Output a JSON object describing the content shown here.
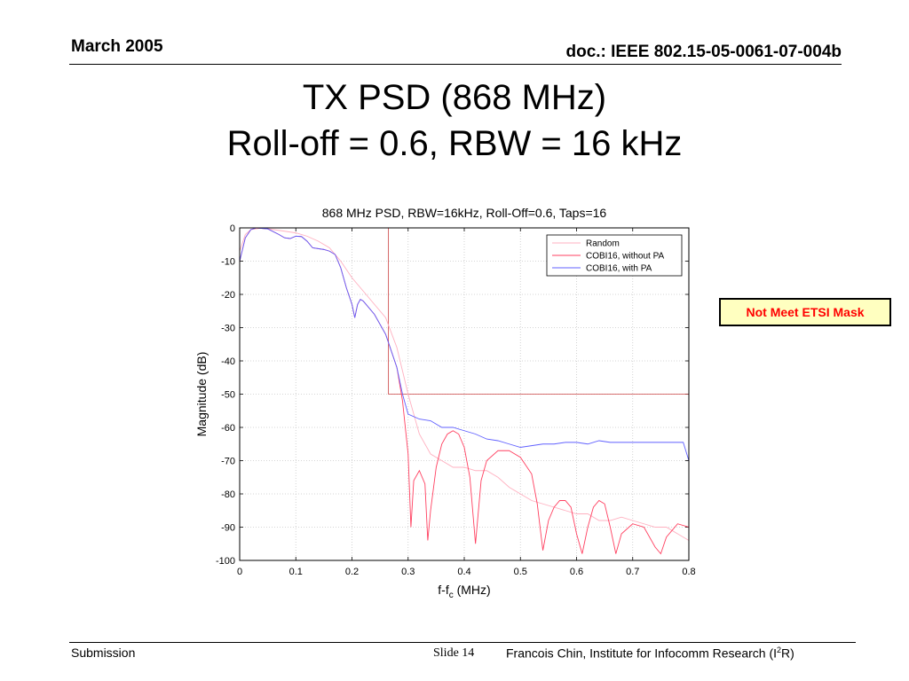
{
  "header": {
    "date": "March 2005",
    "doc_id": "doc.: IEEE 802.15-05-0061-07-004b"
  },
  "slide_title": {
    "line1": "TX PSD (868 MHz)",
    "line2": "Roll-off = 0.6, RBW = 16 kHz"
  },
  "callout": {
    "text": "Not Meet ETSI Mask"
  },
  "footer": {
    "left": "Submission",
    "slide": "Slide 14",
    "author_prefix": "Francois Chin, Institute for Infocomm Research (I",
    "author_sup": "2",
    "author_suffix": "R)"
  },
  "chart_data": {
    "type": "line",
    "title": "868 MHz PSD, RBW=16kHz, Roll-Off=0.6, Taps=16",
    "xlabel": "f-f",
    "xlabel_sub": "c",
    "xlabel_unit": " (MHz)",
    "ylabel": "Magnitude (dB)",
    "xlim": [
      0,
      0.8
    ],
    "ylim": [
      -100,
      0
    ],
    "xticks": [
      "0",
      "0.1",
      "0.2",
      "0.3",
      "0.4",
      "0.5",
      "0.6",
      "0.7",
      "0.8"
    ],
    "yticks": [
      "0",
      "-10",
      "-20",
      "-30",
      "-40",
      "-50",
      "-60",
      "-70",
      "-80",
      "-90",
      "-100"
    ],
    "grid": true,
    "legend_position": "top-right",
    "mask": {
      "color": "#cc4444",
      "points": [
        [
          0,
          0
        ],
        [
          0.265,
          0
        ],
        [
          0.265,
          -50
        ],
        [
          0.8,
          -50
        ]
      ]
    },
    "series": [
      {
        "name": "Random",
        "color": "#ffb0c0",
        "points": [
          [
            0,
            -7
          ],
          [
            0.01,
            -2
          ],
          [
            0.02,
            -0.5
          ],
          [
            0.04,
            0
          ],
          [
            0.06,
            -0.5
          ],
          [
            0.08,
            -1
          ],
          [
            0.1,
            -1.5
          ],
          [
            0.12,
            -2.5
          ],
          [
            0.14,
            -4
          ],
          [
            0.16,
            -6
          ],
          [
            0.18,
            -10
          ],
          [
            0.2,
            -15
          ],
          [
            0.22,
            -19
          ],
          [
            0.24,
            -23
          ],
          [
            0.26,
            -27
          ],
          [
            0.28,
            -36
          ],
          [
            0.3,
            -50
          ],
          [
            0.32,
            -62
          ],
          [
            0.34,
            -68
          ],
          [
            0.36,
            -70
          ],
          [
            0.38,
            -72
          ],
          [
            0.4,
            -72
          ],
          [
            0.42,
            -73
          ],
          [
            0.44,
            -73
          ],
          [
            0.46,
            -75
          ],
          [
            0.48,
            -78
          ],
          [
            0.5,
            -80
          ],
          [
            0.52,
            -82
          ],
          [
            0.54,
            -83
          ],
          [
            0.56,
            -84
          ],
          [
            0.58,
            -85
          ],
          [
            0.6,
            -86
          ],
          [
            0.62,
            -86
          ],
          [
            0.64,
            -88
          ],
          [
            0.66,
            -88
          ],
          [
            0.68,
            -87
          ],
          [
            0.7,
            -88
          ],
          [
            0.72,
            -89
          ],
          [
            0.74,
            -90
          ],
          [
            0.76,
            -90
          ],
          [
            0.78,
            -92
          ],
          [
            0.8,
            -94
          ]
        ]
      },
      {
        "name": "COBI16, without PA",
        "color": "#ff4060",
        "points": [
          [
            0,
            -10
          ],
          [
            0.01,
            -3
          ],
          [
            0.02,
            -0.5
          ],
          [
            0.03,
            0
          ],
          [
            0.05,
            -0.3
          ],
          [
            0.07,
            -2
          ],
          [
            0.08,
            -3
          ],
          [
            0.09,
            -3.2
          ],
          [
            0.1,
            -2.5
          ],
          [
            0.11,
            -2.6
          ],
          [
            0.12,
            -4
          ],
          [
            0.13,
            -6
          ],
          [
            0.15,
            -6.5
          ],
          [
            0.16,
            -7
          ],
          [
            0.17,
            -8
          ],
          [
            0.18,
            -12
          ],
          [
            0.19,
            -18
          ],
          [
            0.2,
            -23
          ],
          [
            0.205,
            -27
          ],
          [
            0.21,
            -23
          ],
          [
            0.215,
            -21.5
          ],
          [
            0.22,
            -22
          ],
          [
            0.24,
            -26
          ],
          [
            0.26,
            -32
          ],
          [
            0.28,
            -42
          ],
          [
            0.29,
            -52
          ],
          [
            0.3,
            -68
          ],
          [
            0.305,
            -90
          ],
          [
            0.31,
            -76
          ],
          [
            0.32,
            -73
          ],
          [
            0.33,
            -77
          ],
          [
            0.335,
            -94
          ],
          [
            0.34,
            -85
          ],
          [
            0.35,
            -72
          ],
          [
            0.36,
            -65
          ],
          [
            0.37,
            -62
          ],
          [
            0.38,
            -61
          ],
          [
            0.39,
            -62
          ],
          [
            0.4,
            -66
          ],
          [
            0.41,
            -75
          ],
          [
            0.42,
            -95
          ],
          [
            0.43,
            -76
          ],
          [
            0.44,
            -70
          ],
          [
            0.46,
            -67
          ],
          [
            0.48,
            -67
          ],
          [
            0.5,
            -69
          ],
          [
            0.52,
            -74
          ],
          [
            0.53,
            -83
          ],
          [
            0.54,
            -97
          ],
          [
            0.55,
            -88
          ],
          [
            0.56,
            -84
          ],
          [
            0.57,
            -82
          ],
          [
            0.58,
            -82
          ],
          [
            0.59,
            -84
          ],
          [
            0.6,
            -92
          ],
          [
            0.61,
            -98
          ],
          [
            0.62,
            -90
          ],
          [
            0.63,
            -84
          ],
          [
            0.64,
            -82
          ],
          [
            0.65,
            -83
          ],
          [
            0.66,
            -90
          ],
          [
            0.67,
            -98
          ],
          [
            0.68,
            -92
          ],
          [
            0.7,
            -89
          ],
          [
            0.72,
            -90
          ],
          [
            0.74,
            -96
          ],
          [
            0.75,
            -98
          ],
          [
            0.76,
            -93
          ],
          [
            0.78,
            -89
          ],
          [
            0.8,
            -90
          ]
        ]
      },
      {
        "name": "COBI16, with PA",
        "color": "#6060ff",
        "points": [
          [
            0,
            -10
          ],
          [
            0.01,
            -3
          ],
          [
            0.02,
            -0.5
          ],
          [
            0.03,
            0
          ],
          [
            0.05,
            -0.3
          ],
          [
            0.07,
            -2
          ],
          [
            0.08,
            -3
          ],
          [
            0.09,
            -3.2
          ],
          [
            0.1,
            -2.5
          ],
          [
            0.11,
            -2.6
          ],
          [
            0.12,
            -4
          ],
          [
            0.13,
            -6
          ],
          [
            0.15,
            -6.5
          ],
          [
            0.16,
            -7
          ],
          [
            0.17,
            -8
          ],
          [
            0.18,
            -12
          ],
          [
            0.19,
            -18
          ],
          [
            0.2,
            -23
          ],
          [
            0.205,
            -27
          ],
          [
            0.21,
            -23
          ],
          [
            0.215,
            -21.5
          ],
          [
            0.22,
            -22
          ],
          [
            0.24,
            -26
          ],
          [
            0.26,
            -32
          ],
          [
            0.28,
            -42
          ],
          [
            0.29,
            -50
          ],
          [
            0.3,
            -56
          ],
          [
            0.32,
            -57.5
          ],
          [
            0.34,
            -58
          ],
          [
            0.36,
            -60
          ],
          [
            0.38,
            -60
          ],
          [
            0.4,
            -61
          ],
          [
            0.42,
            -62
          ],
          [
            0.44,
            -63.5
          ],
          [
            0.46,
            -64
          ],
          [
            0.48,
            -65
          ],
          [
            0.5,
            -66
          ],
          [
            0.52,
            -65.5
          ],
          [
            0.54,
            -65
          ],
          [
            0.56,
            -65
          ],
          [
            0.58,
            -64.5
          ],
          [
            0.6,
            -64.5
          ],
          [
            0.62,
            -65
          ],
          [
            0.64,
            -64
          ],
          [
            0.66,
            -64.5
          ],
          [
            0.68,
            -64.5
          ],
          [
            0.7,
            -64.5
          ],
          [
            0.72,
            -64.5
          ],
          [
            0.74,
            -64.5
          ],
          [
            0.76,
            -64.5
          ],
          [
            0.79,
            -64.5
          ],
          [
            0.8,
            -70
          ]
        ]
      }
    ]
  }
}
